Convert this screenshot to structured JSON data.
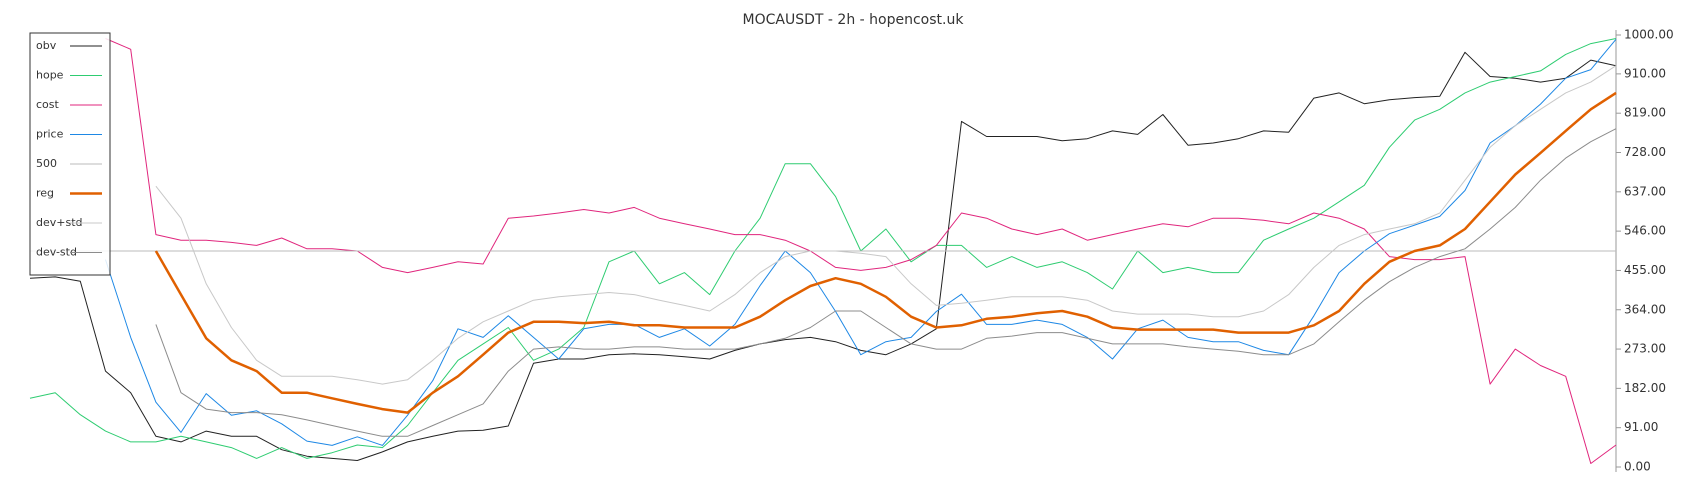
{
  "chart_data": {
    "type": "line",
    "title": "MOCAUSDT - 2h - hopencost.uk",
    "ylim": [
      0,
      1000
    ],
    "yticks": [
      {
        "value": 0,
        "label": "0.00"
      },
      {
        "value": 91,
        "label": "91.00"
      },
      {
        "value": 182,
        "label": "182.00"
      },
      {
        "value": 273,
        "label": "273.00"
      },
      {
        "value": 364,
        "label": "364.00"
      },
      {
        "value": 455,
        "label": "455.00"
      },
      {
        "value": 546,
        "label": "546.00"
      },
      {
        "value": 637,
        "label": "637.00"
      },
      {
        "value": 728,
        "label": "728.00"
      },
      {
        "value": 819,
        "label": "819.00"
      },
      {
        "value": 910,
        "label": "910.00"
      },
      {
        "value": 1000,
        "label": "1000.00"
      }
    ],
    "legend": "upper left",
    "series": [
      {
        "name": "obv",
        "color": "#222222",
        "values": [
          437,
          440,
          430,
          222,
          172,
          71,
          58,
          83,
          71,
          71,
          40,
          25,
          20,
          15,
          35,
          58,
          71,
          83,
          85,
          95,
          240,
          250,
          250,
          260,
          262,
          260,
          255,
          250,
          270,
          285,
          295,
          300,
          290,
          270,
          260,
          285,
          320,
          800,
          765,
          765,
          765,
          755,
          760,
          778,
          770,
          816,
          745,
          750,
          760,
          778,
          775,
          854,
          866,
          841,
          850,
          855,
          858,
          960,
          904,
          900,
          891,
          900,
          942,
          929
        ]
      },
      {
        "name": "hope",
        "color": "#2ecc71",
        "values": [
          159,
          172,
          121,
          83,
          58,
          58,
          71,
          58,
          45,
          20,
          45,
          20,
          33,
          51,
          45,
          96,
          172,
          247,
          285,
          323,
          247,
          273,
          323,
          475,
          500,
          424,
          450,
          399,
          500,
          576,
          702,
          702,
          626,
          500,
          551,
          475,
          513,
          513,
          462,
          487,
          462,
          475,
          450,
          412,
          500,
          450,
          462,
          450,
          450,
          525,
          551,
          576,
          614,
          652,
          740,
          803,
          828,
          866,
          891,
          904,
          917,
          955,
          980,
          992
        ]
      },
      {
        "name": "cost",
        "color": "#e0267d",
        "values": [
          null,
          null,
          null,
          992,
          967,
          538,
          525,
          525,
          520,
          513,
          530,
          505,
          505,
          500,
          462,
          450,
          462,
          475,
          470,
          576,
          581,
          588,
          596,
          588,
          601,
          576,
          563,
          551,
          538,
          538,
          525,
          500,
          462,
          455,
          462,
          480,
          513,
          588,
          576,
          551,
          538,
          551,
          525,
          538,
          551,
          563,
          556,
          576,
          576,
          571,
          563,
          588,
          576,
          551,
          487,
          480,
          480,
          487,
          192,
          273,
          235,
          210,
          8,
          51
        ]
      },
      {
        "name": "price",
        "color": "#1e88e5",
        "values": [
          null,
          null,
          null,
          480,
          300,
          150,
          80,
          170,
          120,
          130,
          100,
          60,
          50,
          70,
          50,
          120,
          200,
          320,
          300,
          350,
          300,
          250,
          320,
          330,
          330,
          300,
          320,
          280,
          330,
          420,
          500,
          450,
          360,
          260,
          290,
          300,
          360,
          400,
          330,
          330,
          340,
          330,
          300,
          250,
          320,
          340,
          300,
          290,
          290,
          270,
          260,
          350,
          450,
          500,
          540,
          560,
          580,
          640,
          750,
          790,
          840,
          900,
          920,
          990
        ]
      },
      {
        "name": "500",
        "color": "#bbbbbb",
        "values": [
          500,
          500,
          500,
          500,
          500,
          500,
          500,
          500,
          500,
          500,
          500,
          500,
          500,
          500,
          500,
          500,
          500,
          500,
          500,
          500,
          500,
          500,
          500,
          500,
          500,
          500,
          500,
          500,
          500,
          500,
          500,
          500,
          500,
          500,
          500,
          500,
          500,
          500,
          500,
          500,
          500,
          500,
          500,
          500,
          500,
          500,
          500,
          500,
          500,
          500,
          500,
          500,
          500,
          500,
          500,
          500,
          500,
          500,
          500,
          500,
          500,
          500,
          500,
          500
        ]
      },
      {
        "name": "reg",
        "color": "#e06000",
        "width": 2.5,
        "values": [
          null,
          null,
          null,
          null,
          null,
          500,
          399,
          298,
          247,
          222,
          172,
          172,
          159,
          146,
          134,
          126,
          172,
          210,
          260,
          311,
          336,
          336,
          333,
          336,
          328,
          328,
          323,
          323,
          323,
          348,
          386,
          419,
          437,
          424,
          394,
          348,
          323,
          328,
          343,
          348,
          356,
          361,
          348,
          323,
          318,
          318,
          318,
          318,
          311,
          311,
          311,
          328,
          361,
          424,
          475,
          500,
          513,
          551,
          614,
          677,
          727,
          778,
          828,
          866
        ]
      },
      {
        "name": "dev+std",
        "color": "#c8c8c8",
        "values": [
          null,
          null,
          null,
          null,
          null,
          650,
          576,
          424,
          323,
          247,
          210,
          210,
          210,
          202,
          192,
          202,
          247,
          298,
          336,
          361,
          386,
          394,
          399,
          404,
          399,
          386,
          374,
          361,
          399,
          450,
          487,
          500,
          500,
          495,
          487,
          424,
          374,
          379,
          386,
          394,
          394,
          394,
          386,
          361,
          354,
          354,
          354,
          348,
          348,
          361,
          399,
          462,
          513,
          538,
          551,
          563,
          588,
          664,
          740,
          790,
          828,
          866,
          891,
          929
        ]
      },
      {
        "name": "dev-std",
        "color": "#8c8c8c",
        "values": [
          null,
          null,
          null,
          null,
          null,
          330,
          172,
          134,
          126,
          126,
          121,
          109,
          96,
          83,
          71,
          71,
          96,
          121,
          146,
          222,
          273,
          278,
          273,
          273,
          278,
          278,
          273,
          273,
          273,
          285,
          298,
          323,
          361,
          361,
          323,
          285,
          273,
          273,
          298,
          303,
          311,
          311,
          298,
          285,
          285,
          285,
          278,
          273,
          268,
          260,
          260,
          285,
          336,
          386,
          429,
          462,
          487,
          505,
          551,
          601,
          664,
          715,
          753,
          783
        ]
      }
    ]
  }
}
